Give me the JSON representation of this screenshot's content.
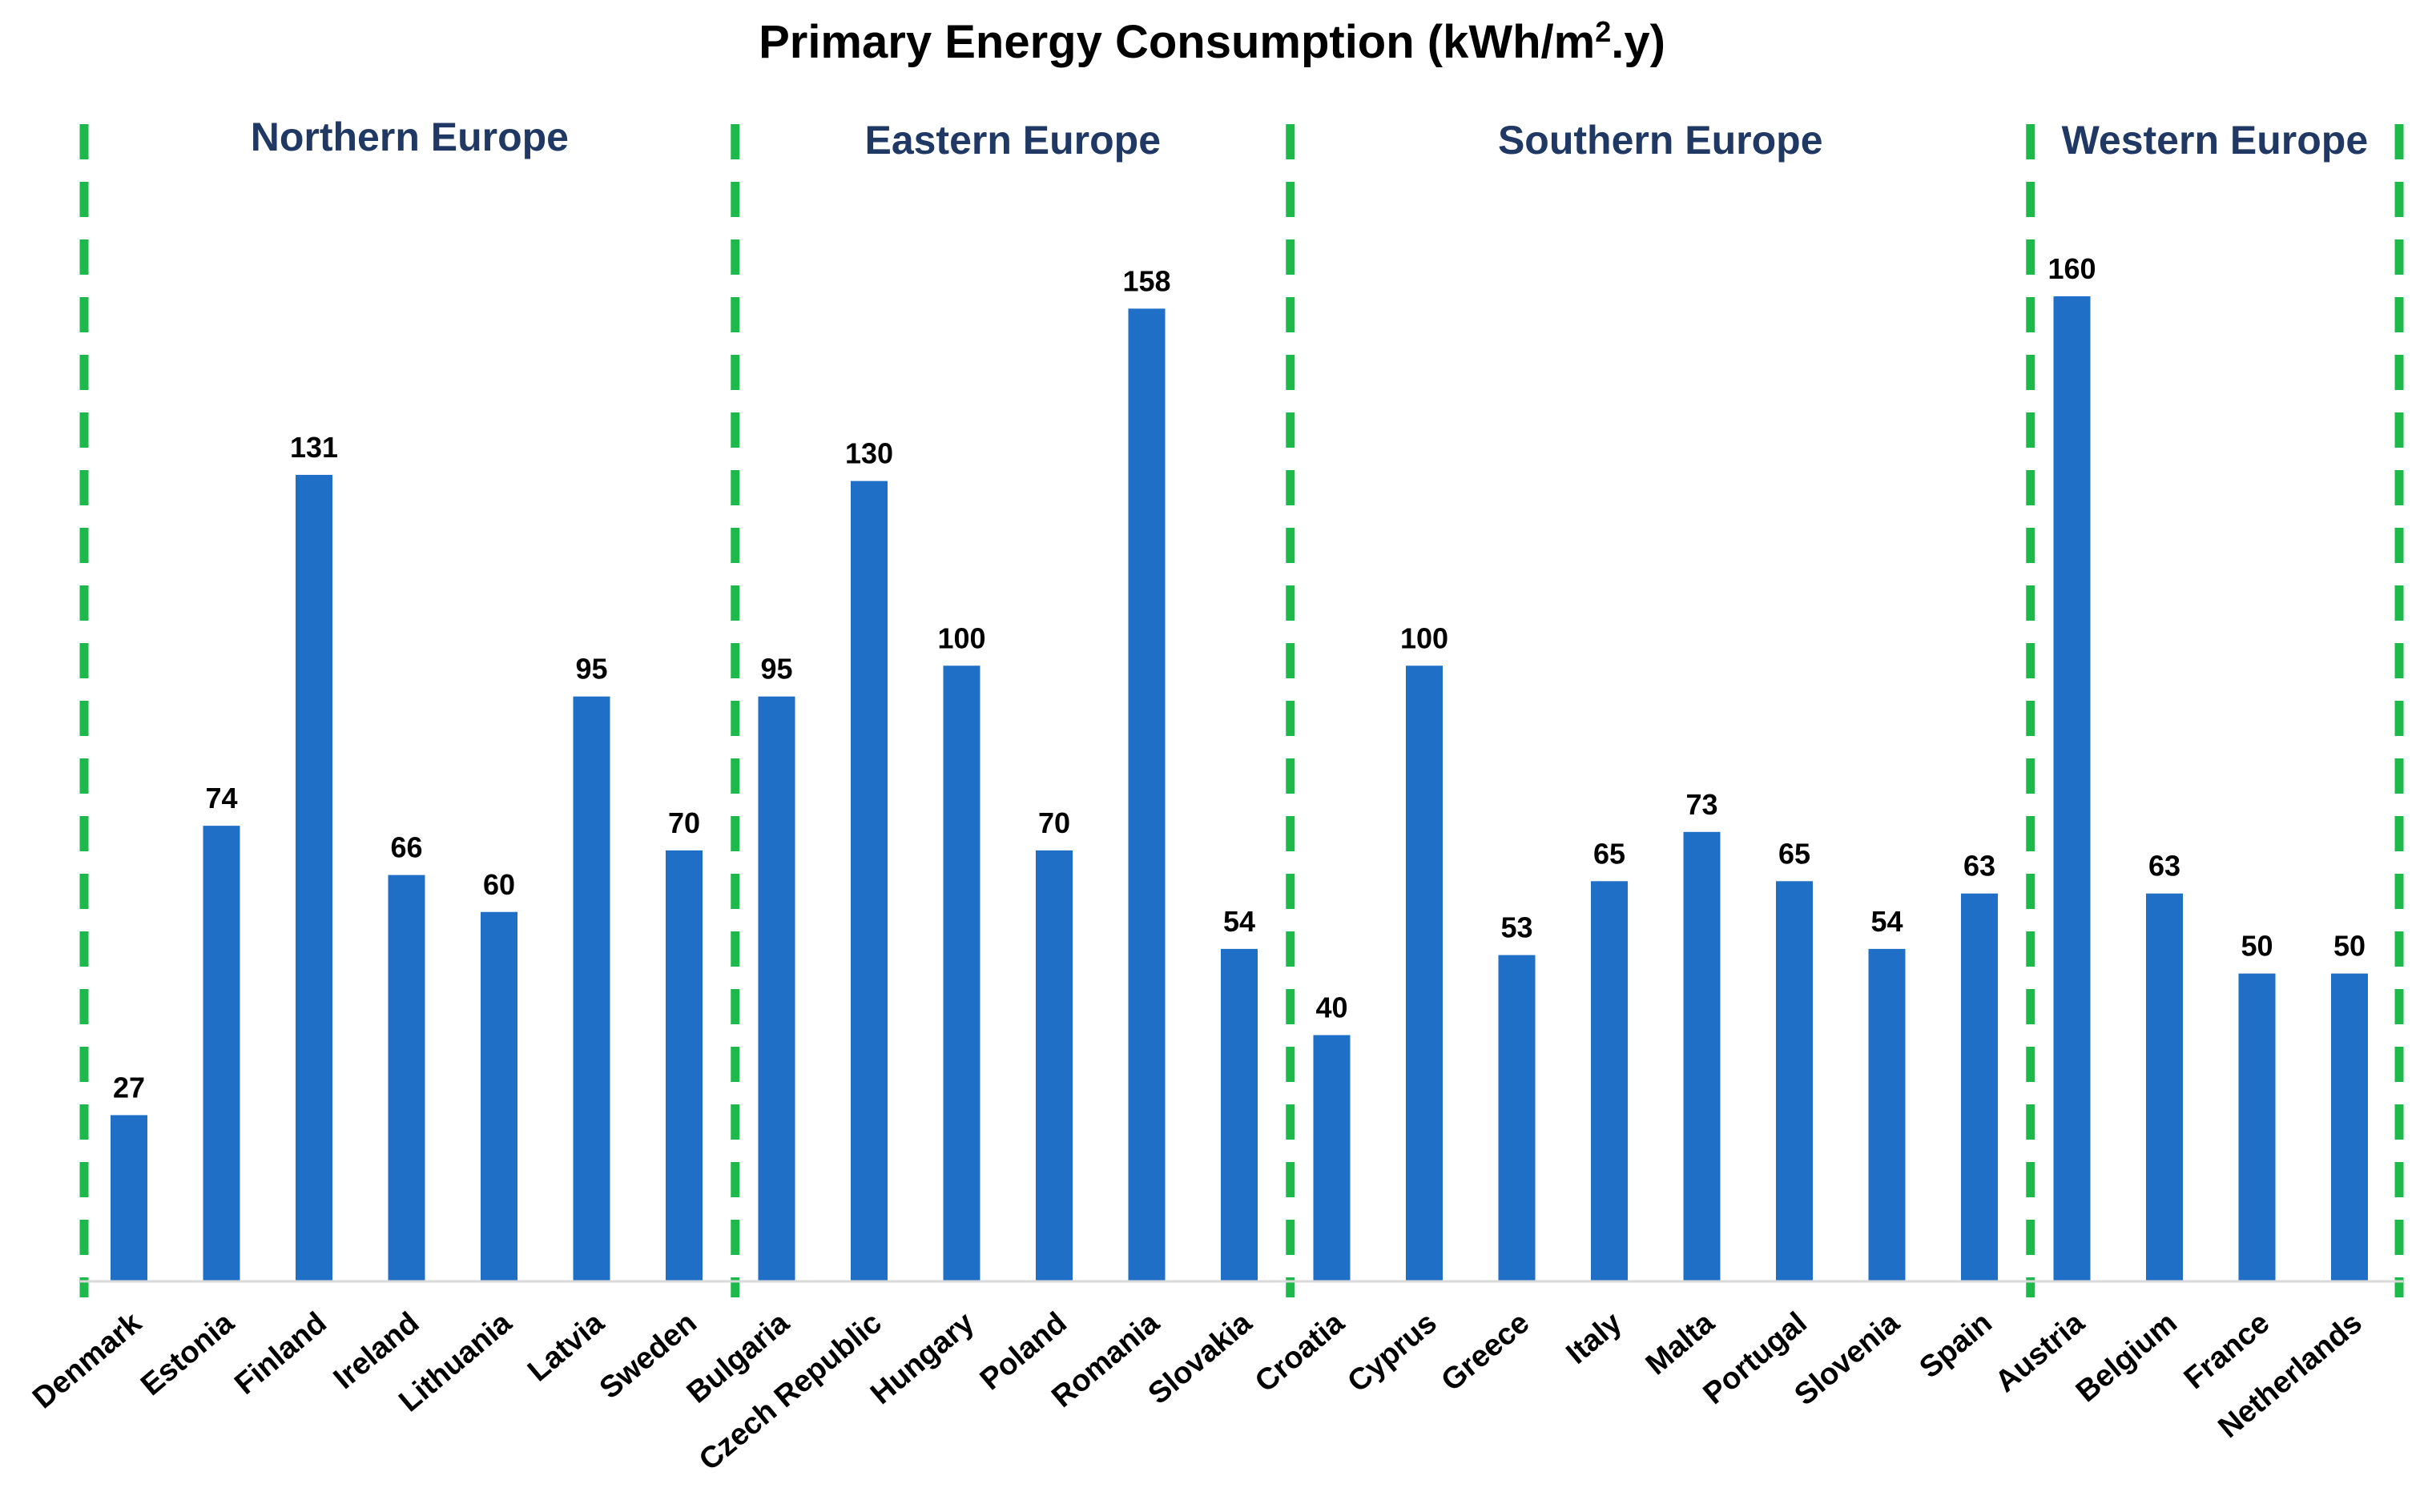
{
  "chart_data": {
    "type": "bar",
    "title": "Primary Energy Consumption (kWh/m",
    "title_sup": "2",
    "title_end": ".y)",
    "xlabel": "",
    "ylabel": "",
    "ylim": [
      0,
      175
    ],
    "grid": false,
    "legend": "none",
    "categories": [
      "Denmark",
      "Estonia",
      "Finland",
      "Ireland",
      "Lithuania",
      "Latvia",
      "Sweden",
      "Bulgaria",
      "Czech Republic",
      "Hungary",
      "Poland",
      "Romania",
      "Slovakia",
      "Croatia",
      "Cyprus",
      "Greece",
      "Italy",
      "Malta",
      "Portugal",
      "Slovenia",
      "Spain",
      "Austria",
      "Belgium",
      "France",
      "Netherlands"
    ],
    "values": [
      27,
      74,
      131,
      66,
      60,
      95,
      70,
      95,
      130,
      100,
      70,
      158,
      54,
      40,
      100,
      53,
      65,
      73,
      65,
      54,
      63,
      160,
      63,
      50,
      50
    ],
    "value_labels": [
      "27",
      "74",
      "131",
      "66",
      "60",
      "95",
      "70",
      "95",
      "130",
      "100",
      "70",
      "158",
      "54",
      "40",
      "100",
      "53",
      "65",
      "73",
      "65",
      "54",
      "63",
      "160",
      "63",
      "50",
      "50"
    ],
    "groups": [
      {
        "name": "Northern Europe",
        "count": 7
      },
      {
        "name": "Eastern Europe",
        "count": 6
      },
      {
        "name": "Southern Europe",
        "count": 8
      },
      {
        "name": "Western Europe",
        "count": 4
      }
    ]
  },
  "colors": {
    "bar": "#1F6FC7",
    "divider": "#1DB94A",
    "region_text": "#1F3864",
    "axis": "#D9D9D9"
  }
}
